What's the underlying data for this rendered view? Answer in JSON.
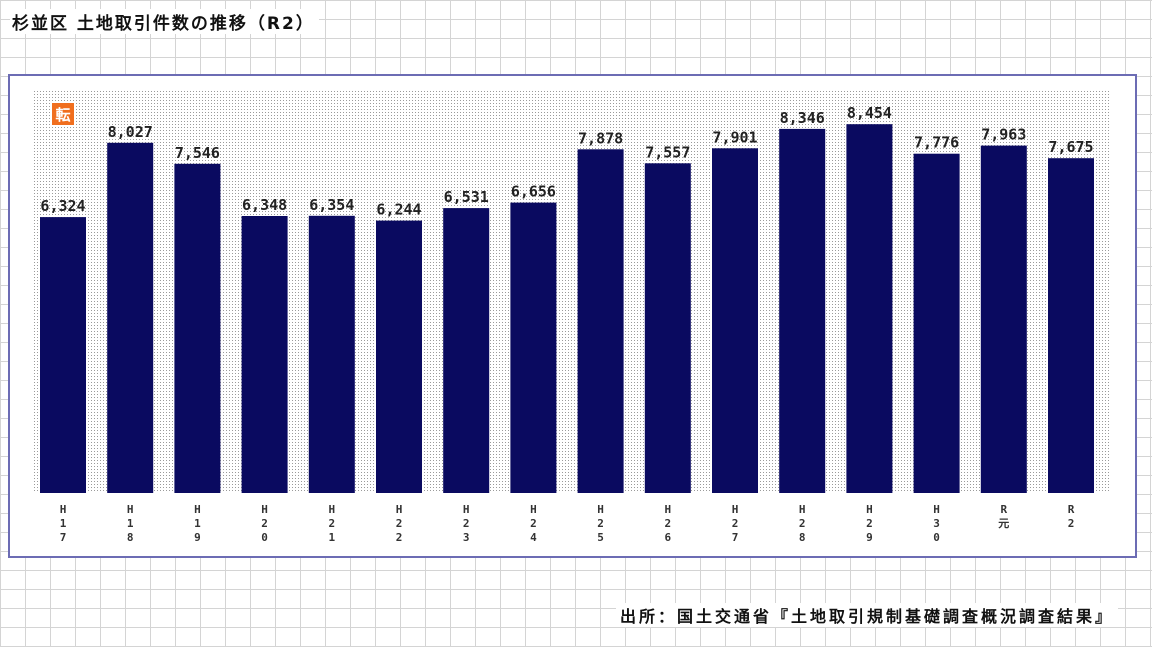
{
  "page": {
    "title": "杉並区 土地取引件数の推移（R2）",
    "source": "出所：国土交通省『土地取引規制基礎調査概況調査結果』",
    "badge_text": "転"
  },
  "colors": {
    "bar": "#0a0a60",
    "frame": "#6c6cb4",
    "badge": "#f06e1e",
    "dots": "#9a9a9a"
  },
  "chart_data": {
    "type": "bar",
    "title": "杉並区 土地取引件数の推移（R2）",
    "categories": [
      "H17",
      "H18",
      "H19",
      "H20",
      "H21",
      "H22",
      "H23",
      "H24",
      "H25",
      "H26",
      "H27",
      "H28",
      "H29",
      "H30",
      "R元",
      "R2"
    ],
    "tick_labels": [
      [
        "H",
        "1",
        "7"
      ],
      [
        "H",
        "1",
        "8"
      ],
      [
        "H",
        "1",
        "9"
      ],
      [
        "H",
        "2",
        "0"
      ],
      [
        "H",
        "2",
        "1"
      ],
      [
        "H",
        "2",
        "2"
      ],
      [
        "H",
        "2",
        "3"
      ],
      [
        "H",
        "2",
        "4"
      ],
      [
        "H",
        "2",
        "5"
      ],
      [
        "H",
        "2",
        "6"
      ],
      [
        "H",
        "2",
        "7"
      ],
      [
        "H",
        "2",
        "8"
      ],
      [
        "H",
        "2",
        "9"
      ],
      [
        "H",
        "3",
        "0"
      ],
      [
        "R",
        "元"
      ],
      [
        "R",
        "2"
      ]
    ],
    "values": [
      6324,
      8027,
      7546,
      6348,
      6354,
      6244,
      6531,
      6656,
      7878,
      7557,
      7901,
      8346,
      8454,
      7776,
      7963,
      7675
    ],
    "value_labels": [
      "6,324",
      "8,027",
      "7,546",
      "6,348",
      "6,354",
      "6,244",
      "6,531",
      "6,656",
      "7,878",
      "7,557",
      "7,901",
      "8,346",
      "8,454",
      "7,776",
      "7,963",
      "7,675"
    ],
    "xlabel": "",
    "ylabel": "",
    "ylim": [
      0,
      9260
    ],
    "grid": false,
    "legend": "none"
  }
}
